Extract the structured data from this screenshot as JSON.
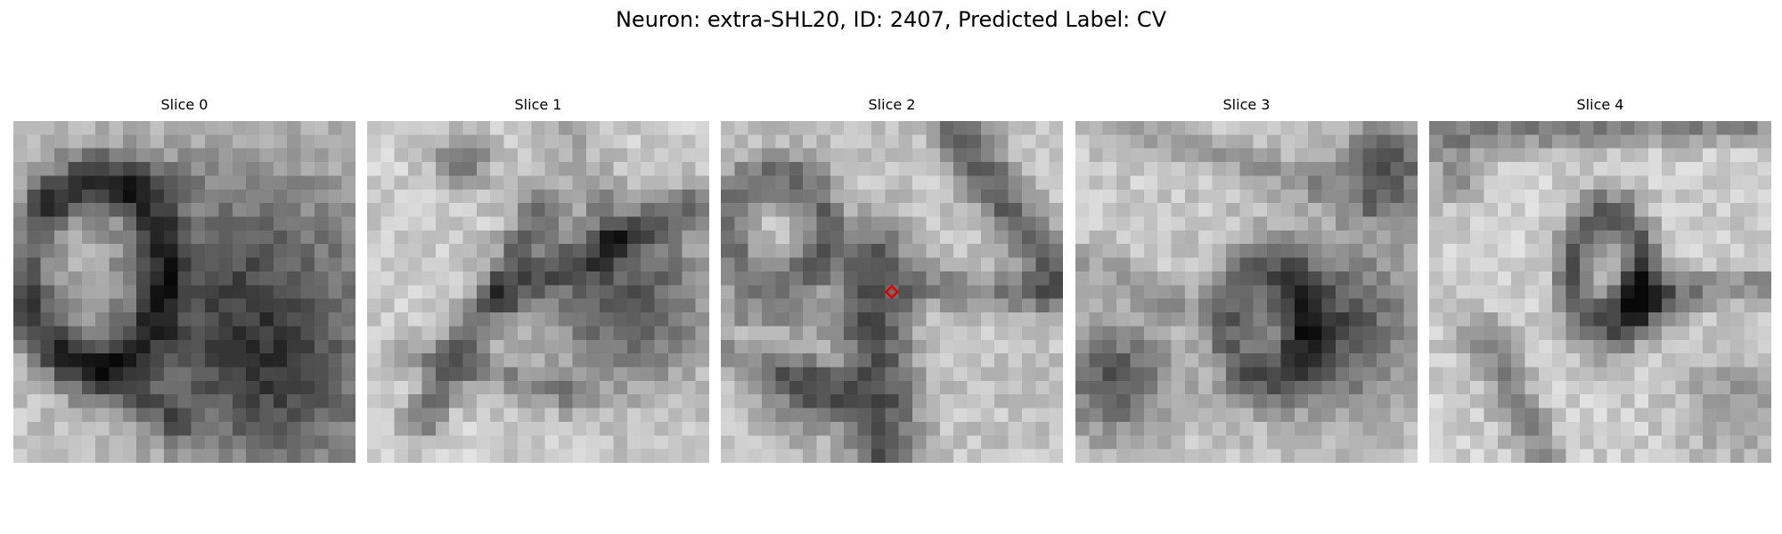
{
  "figure": {
    "title": "Neuron: extra-SHL20, ID: 2407, Predicted Label: CV"
  },
  "slices": [
    {
      "label": "Slice 0"
    },
    {
      "label": "Slice 1"
    },
    {
      "label": "Slice 2"
    },
    {
      "label": "Slice 3"
    },
    {
      "label": "Slice 4"
    }
  ],
  "marker": {
    "slice_index": 2,
    "color": "#e00000"
  },
  "colormap": "gray"
}
